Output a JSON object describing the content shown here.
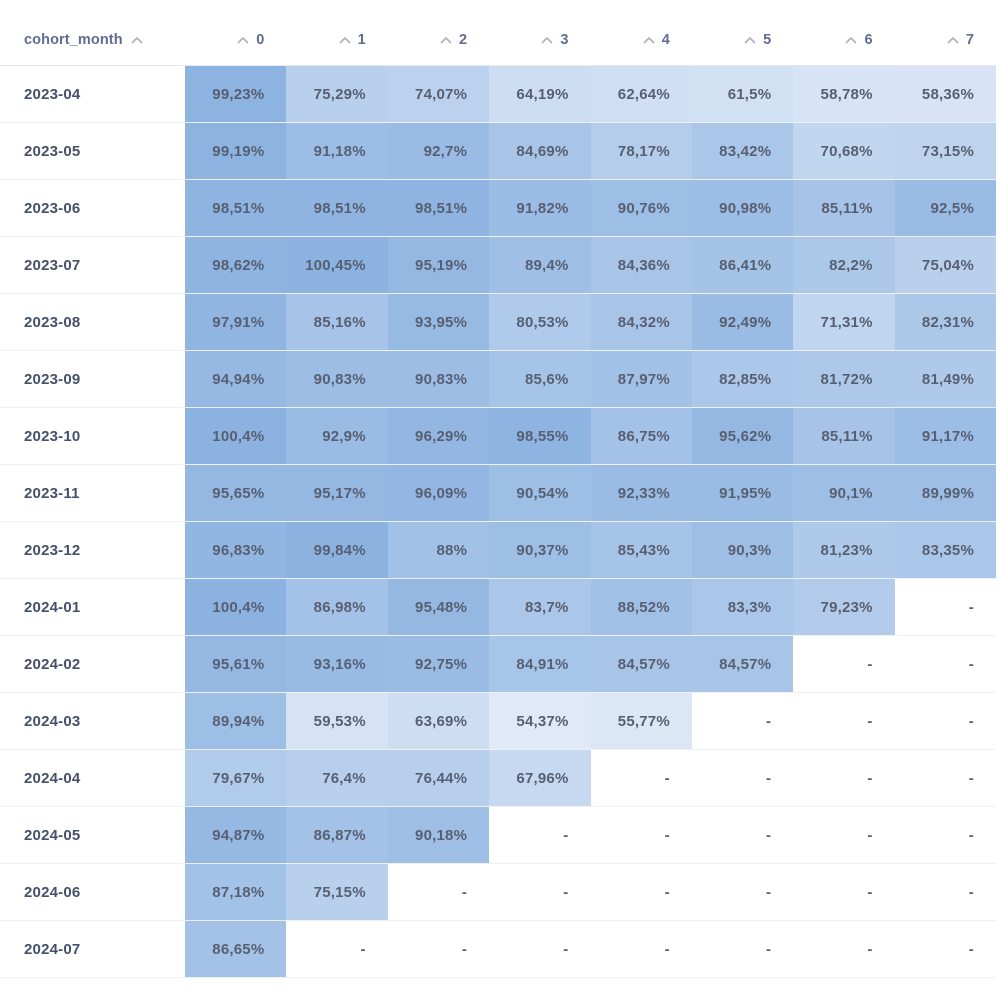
{
  "table": {
    "id_column_header": "cohort_month",
    "columns": [
      "0",
      "1",
      "2",
      "3",
      "4",
      "5",
      "6",
      "7"
    ],
    "empty_placeholder": "-",
    "heatmap": {
      "min_value": 54.37,
      "max_value": 100.45,
      "min_color": "#dfe9f7",
      "max_color": "#8bb2e0"
    },
    "sort_icon_color": "#a9b2c6",
    "rows": [
      {
        "label": "2023-04",
        "values": [
          "99,23%",
          "75,29%",
          "74,07%",
          "64,19%",
          "62,64%",
          "61,5%",
          "58,78%",
          "58,36%"
        ]
      },
      {
        "label": "2023-05",
        "values": [
          "99,19%",
          "91,18%",
          "92,7%",
          "84,69%",
          "78,17%",
          "83,42%",
          "70,68%",
          "73,15%"
        ]
      },
      {
        "label": "2023-06",
        "values": [
          "98,51%",
          "98,51%",
          "98,51%",
          "91,82%",
          "90,76%",
          "90,98%",
          "85,11%",
          "92,5%"
        ]
      },
      {
        "label": "2023-07",
        "values": [
          "98,62%",
          "100,45%",
          "95,19%",
          "89,4%",
          "84,36%",
          "86,41%",
          "82,2%",
          "75,04%"
        ]
      },
      {
        "label": "2023-08",
        "values": [
          "97,91%",
          "85,16%",
          "93,95%",
          "80,53%",
          "84,32%",
          "92,49%",
          "71,31%",
          "82,31%"
        ]
      },
      {
        "label": "2023-09",
        "values": [
          "94,94%",
          "90,83%",
          "90,83%",
          "85,6%",
          "87,97%",
          "82,85%",
          "81,72%",
          "81,49%"
        ]
      },
      {
        "label": "2023-10",
        "values": [
          "100,4%",
          "92,9%",
          "96,29%",
          "98,55%",
          "86,75%",
          "95,62%",
          "85,11%",
          "91,17%"
        ]
      },
      {
        "label": "2023-11",
        "values": [
          "95,65%",
          "95,17%",
          "96,09%",
          "90,54%",
          "92,33%",
          "91,95%",
          "90,1%",
          "89,99%"
        ]
      },
      {
        "label": "2023-12",
        "values": [
          "96,83%",
          "99,84%",
          "88%",
          "90,37%",
          "85,43%",
          "90,3%",
          "81,23%",
          "83,35%"
        ]
      },
      {
        "label": "2024-01",
        "values": [
          "100,4%",
          "86,98%",
          "95,48%",
          "83,7%",
          "88,52%",
          "83,3%",
          "79,23%",
          "-"
        ]
      },
      {
        "label": "2024-02",
        "values": [
          "95,61%",
          "93,16%",
          "92,75%",
          "84,91%",
          "84,57%",
          "84,57%",
          "-",
          "-"
        ]
      },
      {
        "label": "2024-03",
        "values": [
          "89,94%",
          "59,53%",
          "63,69%",
          "54,37%",
          "55,77%",
          "-",
          "-",
          "-"
        ]
      },
      {
        "label": "2024-04",
        "values": [
          "79,67%",
          "76,4%",
          "76,44%",
          "67,96%",
          "-",
          "-",
          "-",
          "-"
        ]
      },
      {
        "label": "2024-05",
        "values": [
          "94,87%",
          "86,87%",
          "90,18%",
          "-",
          "-",
          "-",
          "-",
          "-"
        ]
      },
      {
        "label": "2024-06",
        "values": [
          "87,18%",
          "75,15%",
          "-",
          "-",
          "-",
          "-",
          "-",
          "-"
        ]
      },
      {
        "label": "2024-07",
        "values": [
          "86,65%",
          "-",
          "-",
          "-",
          "-",
          "-",
          "-",
          "-"
        ]
      }
    ]
  }
}
